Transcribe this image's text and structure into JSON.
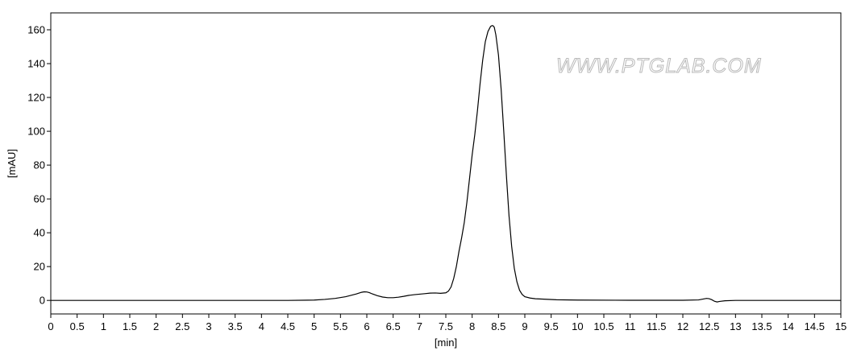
{
  "watermark": "WWW.PTGLAB.COM",
  "chart_data": {
    "type": "line",
    "title": "",
    "xlabel": "[min]",
    "ylabel": "[mAU]",
    "xlim": [
      0,
      15
    ],
    "ylim": [
      -8,
      170
    ],
    "x_ticks": [
      0,
      0.5,
      1,
      1.5,
      2,
      2.5,
      3,
      3.5,
      4,
      4.5,
      5,
      5.5,
      6,
      6.5,
      7,
      7.5,
      8,
      8.5,
      9,
      9.5,
      10,
      10.5,
      11,
      11.5,
      12,
      12.5,
      13,
      13.5,
      14,
      14.5,
      15
    ],
    "x_tick_labels": [
      "0",
      "0.5",
      "1",
      "1.5",
      "2",
      "2.5",
      "3",
      "3.5",
      "4",
      "4.5",
      "5",
      "5.5",
      "6",
      "6.5",
      "7",
      "7.5",
      "8",
      "8.5",
      "9",
      "9.5",
      "10",
      "10.5",
      "11",
      "11.5",
      "12",
      "12.5",
      "13",
      "13.5",
      "14",
      "14.5",
      "15"
    ],
    "y_ticks": [
      0,
      20,
      40,
      60,
      80,
      100,
      120,
      140,
      160
    ],
    "y_tick_labels": [
      "0",
      "20",
      "40",
      "60",
      "80",
      "100",
      "120",
      "140",
      "160"
    ],
    "grid": false,
    "line_color": "#000000",
    "series": [
      {
        "x": [
          0,
          1,
          2,
          3,
          4,
          4.5,
          5,
          5.2,
          5.4,
          5.6,
          5.8,
          5.9,
          5.95,
          6.0,
          6.05,
          6.1,
          6.2,
          6.3,
          6.4,
          6.5,
          6.6,
          6.7,
          6.8,
          6.9,
          7.0,
          7.1,
          7.2,
          7.3,
          7.4,
          7.5,
          7.55,
          7.6,
          7.65,
          7.7,
          7.75,
          7.8,
          7.85,
          7.9,
          7.95,
          8.0,
          8.05,
          8.1,
          8.15,
          8.2,
          8.25,
          8.3,
          8.35,
          8.38,
          8.4,
          8.42,
          8.45,
          8.5,
          8.55,
          8.6,
          8.65,
          8.7,
          8.75,
          8.8,
          8.85,
          8.9,
          8.95,
          9.0,
          9.1,
          9.2,
          9.4,
          9.6,
          10,
          11,
          12,
          12.3,
          12.4,
          12.45,
          12.5,
          12.55,
          12.6,
          12.65,
          12.7,
          12.8,
          13,
          14,
          15
        ],
        "y": [
          0,
          0,
          0,
          0,
          0,
          0,
          0.2,
          0.6,
          1.2,
          2.2,
          3.8,
          4.8,
          5.1,
          5.0,
          4.6,
          3.9,
          2.8,
          2.0,
          1.6,
          1.6,
          1.9,
          2.4,
          3.0,
          3.4,
          3.7,
          4.0,
          4.3,
          4.4,
          4.2,
          4.5,
          5.5,
          8,
          13,
          20,
          29,
          37,
          46,
          58,
          72,
          86,
          98,
          112,
          128,
          142,
          153,
          159,
          162,
          162.5,
          162.3,
          161.5,
          157,
          145,
          125,
          100,
          74,
          50,
          32,
          19,
          11,
          6,
          3.5,
          2.2,
          1.4,
          1.0,
          0.7,
          0.4,
          0.2,
          0.1,
          0.1,
          0.3,
          0.9,
          1.2,
          1.0,
          0.4,
          -0.5,
          -0.9,
          -0.6,
          -0.2,
          0,
          0,
          0
        ]
      }
    ]
  }
}
